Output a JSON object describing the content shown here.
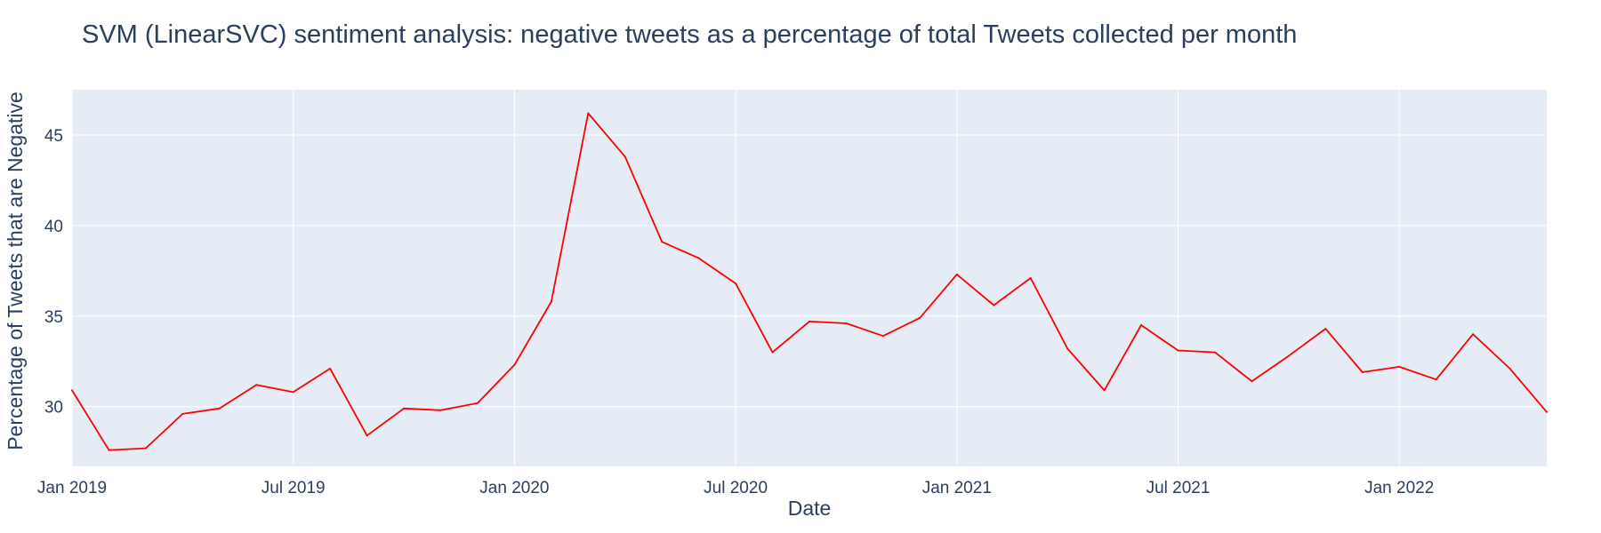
{
  "colors": {
    "plot_background": "#e5ecf6",
    "gridline": "#ffffff",
    "line": "#ff0000",
    "text": "#2a3f5f"
  },
  "chart_data": {
    "type": "line",
    "title": "SVM (LinearSVC) sentiment analysis: negative tweets as a percentage of total Tweets collected per month",
    "xlabel": "Date",
    "ylabel": "Percentage of Tweets that are Negative",
    "grid": true,
    "legend": "none",
    "xlim": [
      "2019-01",
      "2022-05"
    ],
    "ylim": [
      26.7,
      47.5
    ],
    "x_ticks": [
      {
        "value": "2019-01",
        "label": "Jan 2019"
      },
      {
        "value": "2019-07",
        "label": "Jul 2019"
      },
      {
        "value": "2020-01",
        "label": "Jan 2020"
      },
      {
        "value": "2020-07",
        "label": "Jul 2020"
      },
      {
        "value": "2021-01",
        "label": "Jan 2021"
      },
      {
        "value": "2021-07",
        "label": "Jul 2021"
      },
      {
        "value": "2022-01",
        "label": "Jan 2022"
      }
    ],
    "y_ticks": [
      {
        "value": 30,
        "label": "30"
      },
      {
        "value": 35,
        "label": "35"
      },
      {
        "value": 40,
        "label": "40"
      },
      {
        "value": 45,
        "label": "45"
      }
    ],
    "x": [
      "2019-01",
      "2019-02",
      "2019-03",
      "2019-04",
      "2019-05",
      "2019-06",
      "2019-07",
      "2019-08",
      "2019-09",
      "2019-10",
      "2019-11",
      "2019-12",
      "2020-01",
      "2020-02",
      "2020-03",
      "2020-04",
      "2020-05",
      "2020-06",
      "2020-07",
      "2020-08",
      "2020-09",
      "2020-10",
      "2020-11",
      "2020-12",
      "2021-01",
      "2021-02",
      "2021-03",
      "2021-04",
      "2021-05",
      "2021-06",
      "2021-07",
      "2021-08",
      "2021-09",
      "2021-10",
      "2021-11",
      "2021-12",
      "2022-01",
      "2022-02",
      "2022-03",
      "2022-04",
      "2022-05"
    ],
    "series": [
      {
        "values": [
          30.9,
          27.6,
          27.7,
          29.6,
          29.9,
          31.2,
          30.8,
          32.1,
          28.4,
          29.9,
          29.8,
          30.2,
          32.3,
          35.8,
          46.2,
          43.8,
          39.1,
          38.2,
          36.8,
          33.0,
          34.7,
          34.6,
          33.9,
          34.9,
          37.3,
          35.6,
          37.1,
          33.2,
          30.9,
          34.5,
          33.1,
          33.0,
          31.4,
          32.8,
          34.3,
          31.9,
          32.2,
          31.5,
          34.0,
          32.1,
          29.7
        ]
      }
    ]
  }
}
